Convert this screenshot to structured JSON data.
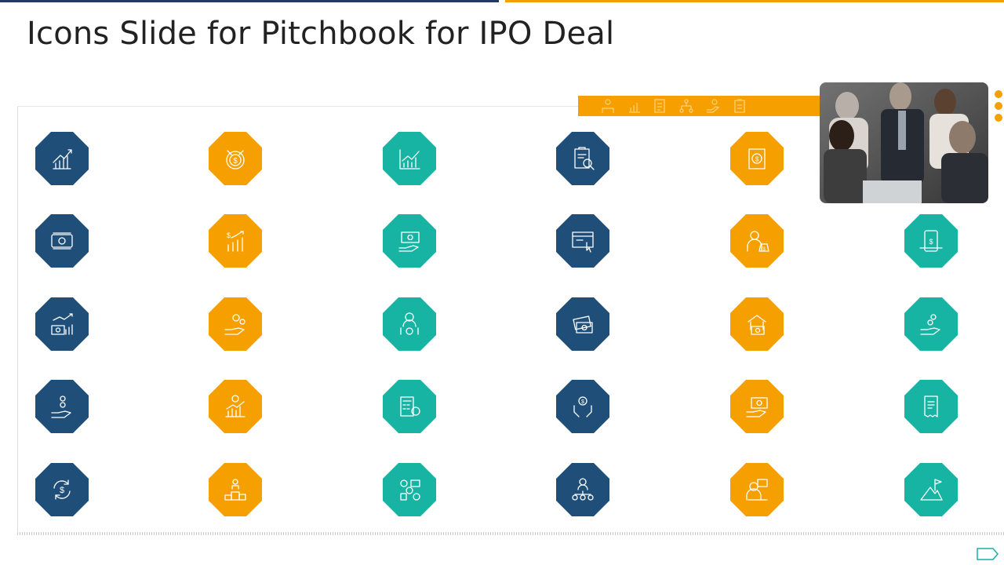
{
  "slide": {
    "title": "Icons Slide for Pitchbook for IPO Deal"
  },
  "colors": {
    "navy": "#1f4e79",
    "orange": "#f5a000",
    "teal": "#17b3a3",
    "accent_line": "#1f3b64"
  },
  "photo": {
    "subject": "business-team-meeting-photo"
  },
  "icon_rows": [
    [
      "growth-bars-arrows-icon",
      "dollar-target-icon",
      "line-chart-icon",
      "clipboard-magnifier-icon",
      "document-dollar-icon",
      null
    ],
    [
      "money-bill-icon",
      "dollar-bar-growth-icon",
      "hand-holding-bill-icon",
      "browser-click-icon",
      "businessman-money-bag-icon",
      "mobile-dollar-icon"
    ],
    [
      "bill-growth-chart-icon",
      "hand-coins-icon",
      "investor-coins-icon",
      "cash-stack-icon",
      "bank-money-icon",
      "hand-coins-drop-icon"
    ],
    [
      "hand-falling-coins-icon",
      "bar-chart-growth-icon",
      "calculator-dollar-icon",
      "hands-protect-dollar-icon",
      "hand-bill-icon",
      "receipt-document-icon"
    ],
    [
      "dollar-cycle-icon",
      "team-podium-icon",
      "analyst-workspace-icon",
      "network-people-icon",
      "presenter-screen-icon",
      "mountain-flag-icon"
    ]
  ],
  "row_colors": [
    "navy",
    "orange",
    "teal",
    "navy",
    "orange",
    "teal"
  ]
}
